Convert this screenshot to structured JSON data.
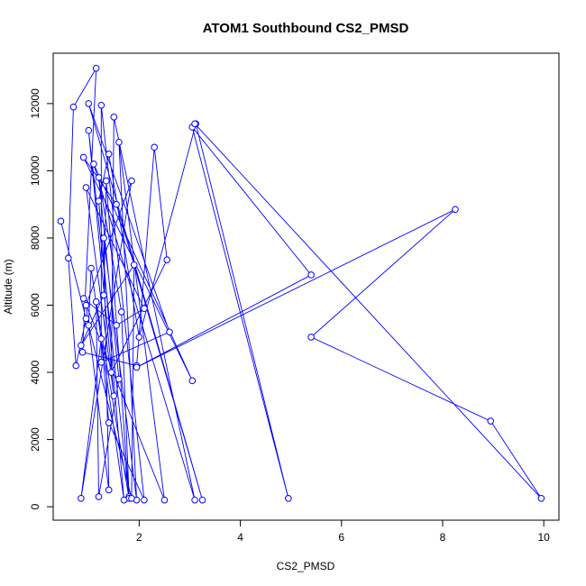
{
  "chart_data": {
    "type": "line",
    "title": "ATOM1 Southbound CS2_PMSD",
    "xlabel": "CS2_PMSD",
    "ylabel": "Altitude (m)",
    "xlim": [
      0.3,
      10.3
    ],
    "ylim": [
      -400,
      13500
    ],
    "x_ticks": [
      2,
      4,
      6,
      8,
      10
    ],
    "y_ticks": [
      0,
      2000,
      4000,
      6000,
      8000,
      10000,
      12000
    ],
    "grid": false,
    "legend": "none",
    "marker": "open-circle",
    "color": "#0000ff",
    "series": [
      {
        "points": [
          [
            0.45,
            8500
          ],
          [
            0.95,
            5600
          ],
          [
            0.75,
            4200
          ],
          [
            0.6,
            7400
          ],
          [
            0.7,
            11900
          ],
          [
            1.15,
            13050
          ],
          [
            0.88,
            4600
          ],
          [
            1.95,
            4200
          ],
          [
            2.3,
            10700
          ],
          [
            2.55,
            7350
          ],
          [
            1.45,
            4000
          ],
          [
            1.5,
            11600
          ],
          [
            3.1,
            200
          ],
          [
            1.1,
            10200
          ],
          [
            3.05,
            3750
          ],
          [
            0.9,
            10400
          ],
          [
            1.55,
            9000
          ],
          [
            3.25,
            200
          ],
          [
            1.0,
            12000
          ],
          [
            2.6,
            5200
          ],
          [
            1.25,
            4300
          ],
          [
            1.25,
            11950
          ],
          [
            2.1,
            200
          ],
          [
            1.4,
            2500
          ],
          [
            1.25,
            5000
          ],
          [
            0.85,
            250
          ],
          [
            1.85,
            9700
          ],
          [
            0.95,
            6000
          ],
          [
            1.4,
            500
          ],
          [
            1.3,
            8000
          ],
          [
            1.95,
            200
          ],
          [
            1.6,
            10850
          ],
          [
            2.5,
            200
          ],
          [
            0.9,
            6200
          ],
          [
            1.55,
            5400
          ],
          [
            2.1,
            5900
          ],
          [
            0.95,
            9500
          ],
          [
            1.5,
            3300
          ],
          [
            1.0,
            11200
          ],
          [
            1.8,
            300
          ],
          [
            1.65,
            5800
          ],
          [
            1.2,
            9800
          ],
          [
            1.6,
            3800
          ],
          [
            1.2,
            300
          ],
          [
            1.15,
            6100
          ],
          [
            1.8,
            250
          ],
          [
            1.35,
            9700
          ],
          [
            1.3,
            6300
          ],
          [
            0.85,
            4800
          ],
          [
            1.9,
            7200
          ],
          [
            1.85,
            250
          ],
          [
            1.0,
            5400
          ],
          [
            1.05,
            7100
          ],
          [
            1.7,
            200
          ],
          [
            1.2,
            9100
          ],
          [
            1.4,
            10500
          ],
          [
            2.0,
            5050
          ],
          [
            3.12,
            11400
          ],
          [
            4.95,
            250
          ],
          [
            3.05,
            11300
          ],
          [
            5.4,
            6900
          ],
          [
            1.95,
            4150
          ],
          [
            8.25,
            8850
          ],
          [
            5.4,
            5050
          ],
          [
            8.95,
            2550
          ],
          [
            9.95,
            250
          ],
          [
            3.1,
            11400
          ]
        ]
      }
    ]
  }
}
